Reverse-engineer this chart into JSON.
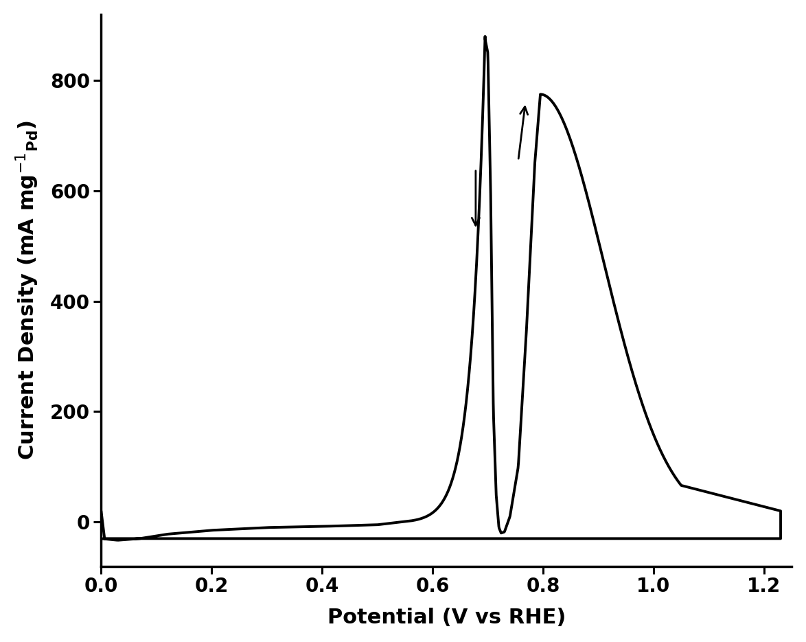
{
  "xlabel": "Potential (V vs RHE)",
  "ylabel_main": "Current Density (mA mg",
  "ylabel_sup": "-1",
  "ylabel_sub": "Pd",
  "xlim": [
    0.0,
    1.25
  ],
  "ylim": [
    -80,
    920
  ],
  "xticks": [
    0.0,
    0.2,
    0.4,
    0.6,
    0.8,
    1.0,
    1.2
  ],
  "yticks": [
    0,
    200,
    400,
    600,
    800
  ],
  "line_color": "#000000",
  "line_width": 2.8,
  "background_color": "#ffffff",
  "tick_labelsize": 20,
  "label_fontsize": 22,
  "spine_linewidth": 2.5
}
